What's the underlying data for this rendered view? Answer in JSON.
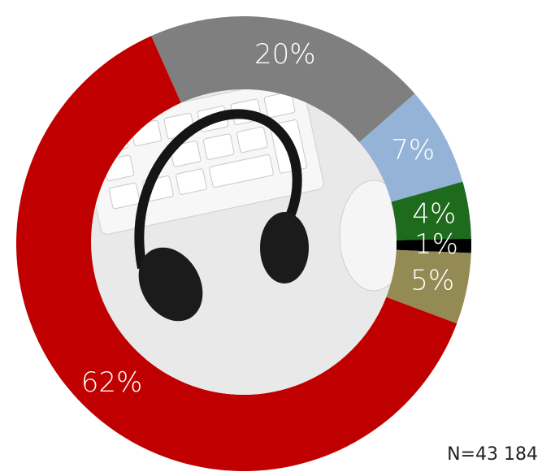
{
  "chart_data": {
    "type": "donut",
    "categories": [
      null,
      null,
      null,
      null,
      null,
      null
    ],
    "values": [
      20,
      7,
      4,
      1,
      5,
      62
    ],
    "value_labels": [
      "20%",
      "7%",
      "4%",
      "1%",
      "5%",
      "62%"
    ],
    "colors": [
      "#7f7f7f",
      "#95b3d7",
      "#1e6b1e",
      "#000000",
      "#948a54",
      "#c00000"
    ],
    "annotation": "N=43 184"
  }
}
